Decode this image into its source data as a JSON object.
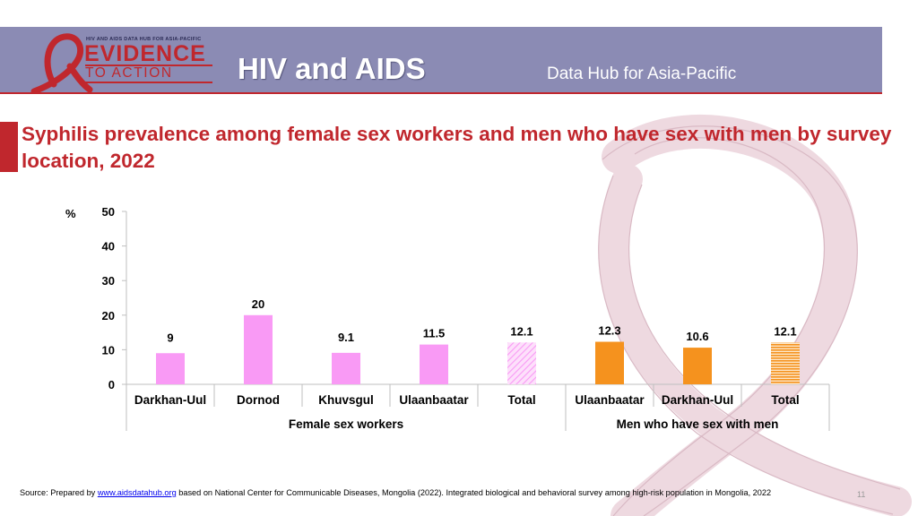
{
  "header": {
    "logo_small": "HIV AND AIDS DATA HUB FOR ASIA-PACIFIC",
    "logo_evidence": "EVIDENCE",
    "logo_action": "TO ACTION",
    "title": "HIV and AIDS",
    "subtitle": "Data Hub for Asia-Pacific"
  },
  "slide": {
    "title": "Syphilis prevalence among female sex workers and men who have sex with men by survey location, 2022"
  },
  "chart_data": {
    "type": "bar",
    "title": "Syphilis prevalence among female sex workers and men who have sex with men by survey location, 2022",
    "ylabel": "%",
    "ylim": [
      0,
      50
    ],
    "yticks": [
      "0",
      "10",
      "20",
      "30",
      "40",
      "50"
    ],
    "groups": [
      "Female sex workers",
      "Men who have sex with men"
    ],
    "categories": [
      "Darkhan-Uul",
      "Dornod",
      "Khuvsgul",
      "Ulaanbaatar",
      "Total",
      "Ulaanbaatar",
      "Darkhan-Uul",
      "Total"
    ],
    "group_index": [
      0,
      0,
      0,
      0,
      0,
      1,
      1,
      1
    ],
    "values": [
      9,
      20,
      9.1,
      11.5,
      12.1,
      12.3,
      10.6,
      12.1
    ],
    "value_labels": [
      "9",
      "20",
      "9.1",
      "11.5",
      "12.1",
      "12.3",
      "10.6",
      "12.1"
    ],
    "bar_styles": [
      "solid",
      "solid",
      "solid",
      "solid",
      "hatched",
      "solid",
      "solid",
      "striped"
    ],
    "colors": {
      "female_sex_workers": "#f99af5",
      "men_who_have_sex_with_men": "#f5921e"
    },
    "grid": false,
    "legend": "none"
  },
  "footer": {
    "source_prefix": "Source: Prepared by ",
    "source_link": "www.aidsdatahub.org",
    "source_suffix": "  based on National Center for Communicable Diseases, Mongolia (2022). Integrated biological and behavioral survey among high-risk population in Mongolia, 2022",
    "page_number": "11"
  }
}
